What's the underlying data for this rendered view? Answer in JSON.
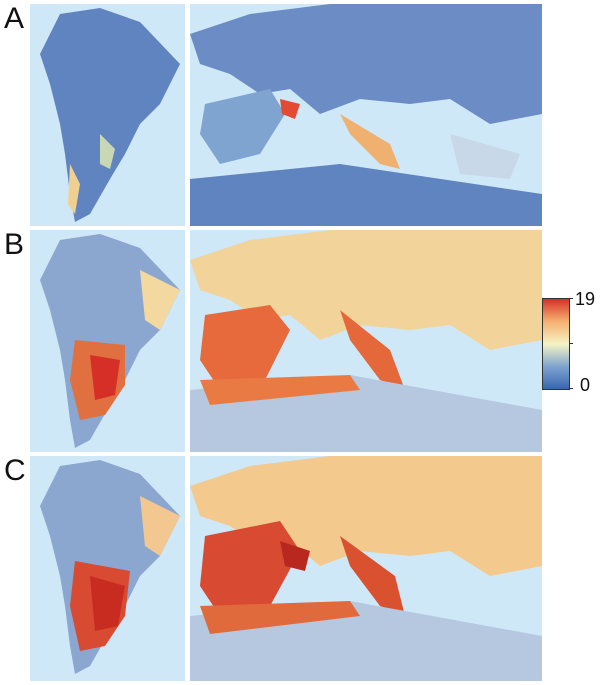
{
  "panels": [
    {
      "id": "A",
      "label": "A",
      "intensity": "low"
    },
    {
      "id": "B",
      "label": "B",
      "intensity": "medium"
    },
    {
      "id": "C",
      "label": "C",
      "intensity": "high"
    }
  ],
  "legend": {
    "max_label": "19",
    "min_label": "0",
    "colors": [
      "#3a66b0",
      "#7fa4cf",
      "#f5f3c4",
      "#f5b070",
      "#d62f27"
    ]
  },
  "colors": {
    "ocean": "#cfe8f7",
    "land_low": "#6b8cc4",
    "land_mid": "#f4e9b4",
    "land_high": "#d84a32"
  }
}
